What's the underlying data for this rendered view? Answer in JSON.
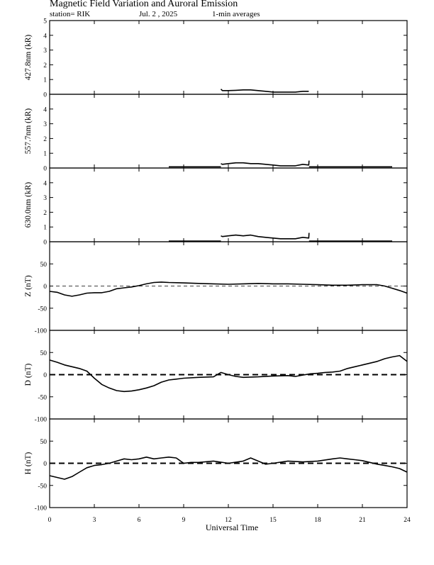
{
  "header": {
    "title": "Magnetic Field Variation and Auroral Emission",
    "station": "station= RIK",
    "date": "Jul.  2  ,  2025",
    "averaging": "1-min averages"
  },
  "xaxis": {
    "label": "Universal Time",
    "range": [
      0,
      24
    ],
    "ticks": [
      0,
      3,
      6,
      9,
      12,
      15,
      18,
      21,
      24
    ],
    "tick_labels": [
      "0",
      "3",
      "6",
      "9",
      "12",
      "15",
      "18",
      "21",
      "24"
    ]
  },
  "chart_data": [
    {
      "type": "line",
      "ylabel": "427.8nm (kR)",
      "ylim": [
        0,
        5
      ],
      "yticks": [
        0,
        1,
        2,
        3,
        4,
        5
      ],
      "ytick_labels": [
        "0",
        "1",
        "2",
        "3",
        "4",
        "5"
      ],
      "zero_line": "none",
      "series": [
        {
          "x": [
            11.5,
            11.6,
            12.0,
            12.5,
            13.0,
            13.5,
            14.0,
            14.5,
            15.0,
            15.5,
            16.0,
            16.5,
            17.0,
            17.4
          ],
          "values": [
            0.35,
            0.25,
            0.25,
            0.27,
            0.3,
            0.3,
            0.25,
            0.2,
            0.15,
            0.15,
            0.15,
            0.15,
            0.2,
            0.2
          ]
        }
      ]
    },
    {
      "type": "line",
      "ylabel": "557.7nm (kR)",
      "ylim": [
        0,
        5
      ],
      "yticks": [
        0,
        1,
        2,
        3,
        4
      ],
      "ytick_labels": [
        "0",
        "1",
        "2",
        "3",
        "4"
      ],
      "zero_line": "none",
      "series": [
        {
          "x": [
            8.0,
            11.5
          ],
          "values": [
            0.08,
            0.08
          ]
        },
        {
          "x": [
            11.5,
            11.6,
            12.0,
            12.5,
            13.0,
            13.5,
            14.0,
            14.5,
            15.0,
            15.5,
            16.0,
            16.5,
            17.0,
            17.4,
            17.42
          ],
          "values": [
            0.3,
            0.25,
            0.3,
            0.35,
            0.35,
            0.3,
            0.3,
            0.25,
            0.2,
            0.15,
            0.15,
            0.15,
            0.25,
            0.2,
            0.5
          ]
        },
        {
          "x": [
            17.42,
            23.0
          ],
          "values": [
            0.08,
            0.08
          ]
        }
      ]
    },
    {
      "type": "line",
      "ylabel": "630.0nm (kR)",
      "ylim": [
        0,
        5
      ],
      "yticks": [
        0,
        1,
        2,
        3,
        4
      ],
      "ytick_labels": [
        "0",
        "1",
        "2",
        "3",
        "4"
      ],
      "zero_line": "none",
      "series": [
        {
          "x": [
            8.0,
            11.5
          ],
          "values": [
            0.05,
            0.05
          ]
        },
        {
          "x": [
            11.5,
            11.6,
            12.0,
            12.5,
            13.0,
            13.5,
            14.0,
            14.5,
            15.0,
            15.5,
            16.0,
            16.5,
            17.0,
            17.4,
            17.42
          ],
          "values": [
            0.4,
            0.35,
            0.4,
            0.45,
            0.4,
            0.45,
            0.35,
            0.3,
            0.25,
            0.2,
            0.2,
            0.2,
            0.3,
            0.25,
            0.6
          ]
        },
        {
          "x": [
            17.42,
            23.0
          ],
          "values": [
            0.05,
            0.05
          ]
        }
      ]
    },
    {
      "type": "line",
      "ylabel": "Z (nT)",
      "ylim": [
        -100,
        100
      ],
      "yticks": [
        -100,
        -50,
        0,
        50
      ],
      "ytick_labels": [
        "-100",
        "-50",
        "0",
        "50"
      ],
      "zero_line": "thin",
      "series": [
        {
          "x": [
            0,
            0.5,
            1.0,
            1.5,
            2.0,
            2.5,
            3.0,
            3.5,
            4.0,
            4.5,
            5.0,
            5.5,
            6.0,
            6.5,
            7.0,
            7.5,
            8.0,
            9.0,
            10.0,
            11.0,
            12.0,
            13.0,
            14.0,
            15.0,
            16.0,
            17.0,
            18.0,
            19.0,
            20.0,
            21.0,
            22.0,
            22.5,
            23.0,
            23.5,
            24.0
          ],
          "values": [
            -12,
            -14,
            -20,
            -23,
            -20,
            -16,
            -15,
            -15,
            -12,
            -6,
            -4,
            -2,
            1,
            5,
            8,
            9,
            8,
            7,
            6,
            5,
            4,
            5,
            6,
            5,
            5,
            4,
            3,
            2,
            2,
            3,
            3,
            0,
            -5,
            -10,
            -16
          ]
        }
      ]
    },
    {
      "type": "line",
      "ylabel": "D (nT)",
      "ylim": [
        -100,
        100
      ],
      "yticks": [
        -100,
        -50,
        0,
        50
      ],
      "ytick_labels": [
        "-100",
        "-50",
        "0",
        "50"
      ],
      "zero_line": "thick-dashed",
      "series": [
        {
          "x": [
            0,
            0.5,
            1.0,
            1.5,
            2.0,
            2.5,
            3.0,
            3.5,
            4.0,
            4.5,
            5.0,
            5.5,
            6.0,
            6.5,
            7.0,
            7.5,
            8.0,
            8.5,
            9.0,
            10.0,
            11.0,
            11.5,
            12.0,
            12.5,
            13.0,
            14.0,
            15.0,
            16.0,
            16.5,
            17.0,
            17.5,
            18.0,
            18.5,
            19.0,
            19.5,
            20.0,
            20.5,
            21.0,
            21.5,
            22.0,
            22.5,
            23.0,
            23.5,
            24.0
          ],
          "values": [
            33,
            28,
            22,
            18,
            14,
            8,
            -8,
            -22,
            -30,
            -36,
            -38,
            -37,
            -34,
            -30,
            -25,
            -17,
            -12,
            -10,
            -8,
            -6,
            -5,
            5,
            0,
            -4,
            -6,
            -5,
            -3,
            -2,
            -4,
            -1,
            2,
            3,
            5,
            6,
            8,
            14,
            18,
            22,
            26,
            30,
            36,
            40,
            43,
            30
          ]
        }
      ]
    },
    {
      "type": "line",
      "ylabel": "H (nT)",
      "ylim": [
        -100,
        100
      ],
      "yticks": [
        -100,
        -50,
        0,
        50
      ],
      "ytick_labels": [
        "-100",
        "-50",
        "0",
        "50"
      ],
      "zero_line": "thick-dashed",
      "series": [
        {
          "x": [
            0,
            0.5,
            1.0,
            1.5,
            2.0,
            2.5,
            3.0,
            3.5,
            4.0,
            4.5,
            5.0,
            5.5,
            6.0,
            6.5,
            7.0,
            7.5,
            8.0,
            8.5,
            9.0,
            9.5,
            10.0,
            11.0,
            12.0,
            13.0,
            13.5,
            14.0,
            14.5,
            15.0,
            16.0,
            17.0,
            18.0,
            19.0,
            19.5,
            20.0,
            20.5,
            21.0,
            21.5,
            22.0,
            22.5,
            23.0,
            23.5,
            24.0
          ],
          "values": [
            -28,
            -32,
            -36,
            -30,
            -20,
            -10,
            -5,
            -3,
            0,
            5,
            10,
            8,
            10,
            14,
            10,
            12,
            14,
            12,
            0,
            2,
            2,
            5,
            0,
            5,
            12,
            5,
            -2,
            0,
            5,
            3,
            5,
            10,
            12,
            10,
            8,
            6,
            2,
            -2,
            -5,
            -8,
            -12,
            -20
          ]
        }
      ]
    }
  ]
}
